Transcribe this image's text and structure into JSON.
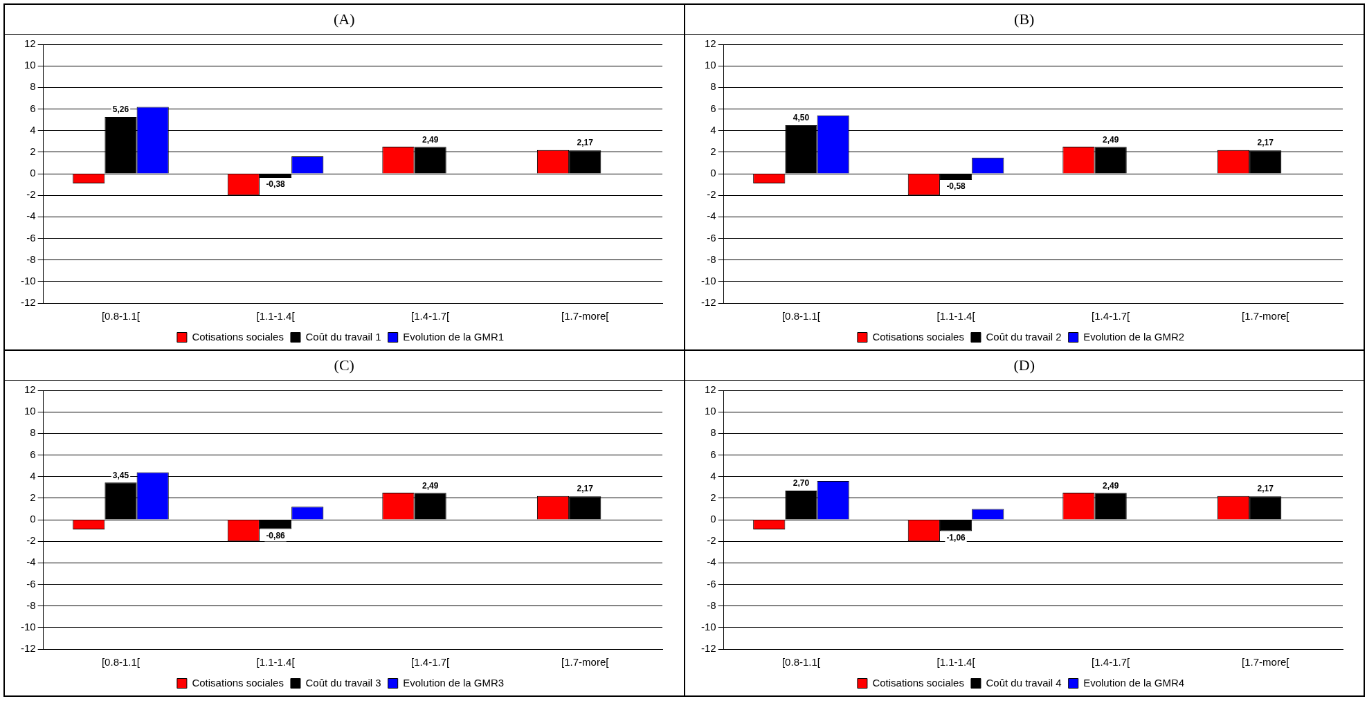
{
  "chart_data": [
    {
      "type": "bar",
      "title": "(A)",
      "categories": [
        "[0.8-1.1[",
        "[1.1-1.4[",
        "[1.4-1.7[",
        "[1.7-more["
      ],
      "series": [
        {
          "name": "Cotisations sociales",
          "color": "#ff0000",
          "values": [
            -0.9,
            -2.0,
            2.5,
            2.2
          ]
        },
        {
          "name": "Coût du travail 1",
          "color": "#000000",
          "values": [
            5.26,
            -0.38,
            2.49,
            2.17
          ],
          "value_labels": [
            "5,26",
            "-0,38",
            "2,49",
            "2,17"
          ]
        },
        {
          "name": "Evolution de la GMR1",
          "color": "#0000ff",
          "values": [
            6.2,
            1.6,
            null,
            null
          ]
        }
      ],
      "ylim": [
        -12,
        12
      ],
      "yticks": [
        -12,
        -10,
        -8,
        -6,
        -4,
        -2,
        0,
        2,
        4,
        6,
        8,
        10,
        12
      ],
      "grid": "y",
      "legend": "bottom"
    },
    {
      "type": "bar",
      "title": "(B)",
      "categories": [
        "[0.8-1.1[",
        "[1.1-1.4[",
        "[1.4-1.7[",
        "[1.7-more["
      ],
      "series": [
        {
          "name": "Cotisations sociales",
          "color": "#ff0000",
          "values": [
            -0.9,
            -2.0,
            2.5,
            2.2
          ]
        },
        {
          "name": "Coût du travail 2",
          "color": "#000000",
          "values": [
            4.5,
            -0.58,
            2.49,
            2.17
          ],
          "value_labels": [
            "4,50",
            "-0,58",
            "2,49",
            "2,17"
          ]
        },
        {
          "name": "Evolution de la GMR2",
          "color": "#0000ff",
          "values": [
            5.4,
            1.5,
            null,
            null
          ]
        }
      ],
      "ylim": [
        -12,
        12
      ],
      "yticks": [
        -12,
        -10,
        -8,
        -6,
        -4,
        -2,
        0,
        2,
        4,
        6,
        8,
        10,
        12
      ],
      "grid": "y",
      "legend": "bottom"
    },
    {
      "type": "bar",
      "title": "(C)",
      "categories": [
        "[0.8-1.1[",
        "[1.1-1.4[",
        "[1.4-1.7[",
        "[1.7-more["
      ],
      "series": [
        {
          "name": "Cotisations sociales",
          "color": "#ff0000",
          "values": [
            -0.9,
            -2.0,
            2.5,
            2.2
          ]
        },
        {
          "name": "Coût du travail 3",
          "color": "#000000",
          "values": [
            3.45,
            -0.86,
            2.49,
            2.17
          ],
          "value_labels": [
            "3,45",
            "-0,86",
            "2,49",
            "2,17"
          ]
        },
        {
          "name": "Evolution de la GMR3",
          "color": "#0000ff",
          "values": [
            4.4,
            1.2,
            null,
            null
          ]
        }
      ],
      "ylim": [
        -12,
        12
      ],
      "yticks": [
        -12,
        -10,
        -8,
        -6,
        -4,
        -2,
        0,
        2,
        4,
        6,
        8,
        10,
        12
      ],
      "grid": "y",
      "legend": "bottom"
    },
    {
      "type": "bar",
      "title": "(D)",
      "categories": [
        "[0.8-1.1[",
        "[1.1-1.4[",
        "[1.4-1.7[",
        "[1.7-more["
      ],
      "series": [
        {
          "name": "Cotisations sociales",
          "color": "#ff0000",
          "values": [
            -0.9,
            -2.0,
            2.5,
            2.2
          ]
        },
        {
          "name": "Coût du travail 4",
          "color": "#000000",
          "values": [
            2.7,
            -1.06,
            2.49,
            2.17
          ],
          "value_labels": [
            "2,70",
            "-1,06",
            "2,49",
            "2,17"
          ]
        },
        {
          "name": "Evolution de la GMR4",
          "color": "#0000ff",
          "values": [
            3.6,
            1.0,
            null,
            null
          ]
        }
      ],
      "ylim": [
        -12,
        12
      ],
      "yticks": [
        -12,
        -10,
        -8,
        -6,
        -4,
        -2,
        0,
        2,
        4,
        6,
        8,
        10,
        12
      ],
      "grid": "y",
      "legend": "bottom"
    }
  ]
}
